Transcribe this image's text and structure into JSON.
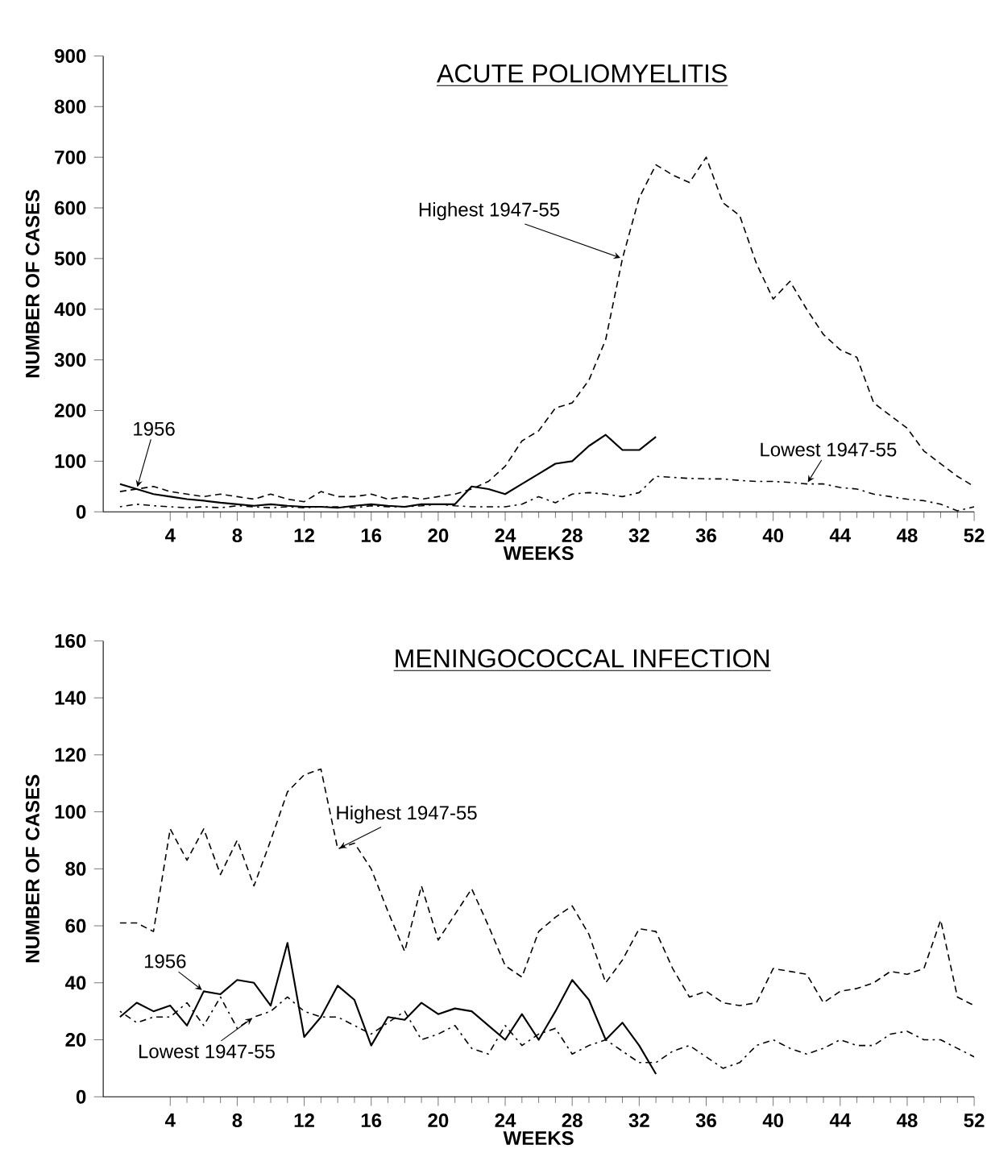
{
  "chart_data": [
    {
      "type": "line",
      "title": "ACUTE POLIOMYELITIS",
      "xlabel": "WEEKS",
      "ylabel": "NUMBER OF CASES",
      "x": [
        1,
        2,
        3,
        4,
        5,
        6,
        7,
        8,
        9,
        10,
        11,
        12,
        13,
        14,
        15,
        16,
        17,
        18,
        19,
        20,
        21,
        22,
        23,
        24,
        25,
        26,
        27,
        28,
        29,
        30,
        31,
        32,
        33,
        34,
        35,
        36,
        37,
        38,
        39,
        40,
        41,
        42,
        43,
        44,
        45,
        46,
        47,
        48,
        49,
        50,
        51,
        52
      ],
      "xlim": [
        0,
        52
      ],
      "xticks": [
        4,
        8,
        12,
        16,
        20,
        24,
        28,
        32,
        36,
        40,
        44,
        48,
        52
      ],
      "ylim": [
        0,
        900
      ],
      "yticks": [
        0,
        100,
        200,
        300,
        400,
        500,
        600,
        700,
        800,
        900
      ],
      "series": [
        {
          "color": "#000000",
          "line_style": "solid",
          "x": [
            1,
            2,
            3,
            4,
            5,
            6,
            7,
            8,
            9,
            10,
            11,
            12,
            13,
            14,
            15,
            16,
            17,
            18,
            19,
            20,
            21,
            22,
            23,
            24,
            25,
            26,
            27,
            28,
            29,
            30,
            31,
            32,
            33
          ],
          "values": [
            55,
            45,
            35,
            30,
            25,
            22,
            18,
            15,
            12,
            15,
            12,
            10,
            10,
            8,
            12,
            15,
            12,
            10,
            15,
            15,
            15,
            50,
            45,
            35,
            55,
            75,
            95,
            100,
            130,
            152,
            122,
            122,
            148
          ]
        },
        {
          "color": "#000000",
          "line_style": "dashed",
          "values": [
            40,
            45,
            50,
            40,
            35,
            30,
            35,
            30,
            25,
            35,
            25,
            20,
            40,
            30,
            30,
            35,
            25,
            30,
            25,
            30,
            35,
            45,
            60,
            90,
            140,
            160,
            205,
            215,
            260,
            340,
            500,
            620,
            685,
            665,
            650,
            700,
            610,
            585,
            490,
            420,
            455,
            400,
            350,
            320,
            305,
            215,
            190,
            165,
            120,
            95,
            70,
            50
          ]
        },
        {
          "color": "#000000",
          "line_style": "dotted",
          "values": [
            10,
            15,
            12,
            10,
            8,
            10,
            8,
            12,
            10,
            8,
            10,
            8,
            10,
            10,
            8,
            12,
            10,
            10,
            12,
            15,
            12,
            10,
            10,
            10,
            15,
            30,
            18,
            35,
            38,
            35,
            30,
            38,
            70,
            68,
            66,
            65,
            65,
            62,
            60,
            60,
            58,
            55,
            55,
            48,
            45,
            35,
            30,
            25,
            22,
            15,
            2,
            10
          ]
        }
      ],
      "annotations": [
        {
          "text": "1956",
          "x": 2,
          "y": 45
        },
        {
          "text": "Highest 1947-55",
          "x": 31,
          "y": 500
        },
        {
          "text": "Lowest 1947-55",
          "x": 42,
          "y": 55
        }
      ]
    },
    {
      "type": "line",
      "title": "MENINGOCOCCAL INFECTION",
      "xlabel": "WEEKS",
      "ylabel": "NUMBER OF CASES",
      "x": [
        1,
        2,
        3,
        4,
        5,
        6,
        7,
        8,
        9,
        10,
        11,
        12,
        13,
        14,
        15,
        16,
        17,
        18,
        19,
        20,
        21,
        22,
        23,
        24,
        25,
        26,
        27,
        28,
        29,
        30,
        31,
        32,
        33,
        34,
        35,
        36,
        37,
        38,
        39,
        40,
        41,
        42,
        43,
        44,
        45,
        46,
        47,
        48,
        49,
        50,
        51,
        52
      ],
      "xlim": [
        0,
        52
      ],
      "xticks": [
        4,
        8,
        12,
        16,
        20,
        24,
        28,
        32,
        36,
        40,
        44,
        48,
        52
      ],
      "ylim": [
        0,
        160
      ],
      "yticks": [
        0,
        20,
        40,
        60,
        80,
        100,
        120,
        140,
        160
      ],
      "series": [
        {
          "color": "#000000",
          "line_style": "solid",
          "x": [
            1,
            2,
            3,
            4,
            5,
            6,
            7,
            8,
            9,
            10,
            11,
            12,
            13,
            14,
            15,
            16,
            17,
            18,
            19,
            20,
            21,
            22,
            23,
            24,
            25,
            26,
            27,
            28,
            29,
            30,
            31,
            32,
            33
          ],
          "values": [
            28,
            33,
            30,
            32,
            25,
            37,
            36,
            41,
            40,
            32,
            54,
            21,
            28,
            39,
            34,
            18,
            28,
            27,
            33,
            29,
            31,
            30,
            25,
            20,
            29,
            20,
            30,
            41,
            34,
            20,
            26,
            18,
            8
          ]
        },
        {
          "color": "#000000",
          "line_style": "dashed",
          "values": [
            61,
            61,
            58,
            94,
            83,
            94,
            78,
            90,
            74,
            90,
            107,
            113,
            115,
            87,
            89,
            80,
            65,
            51,
            74,
            55,
            64,
            73,
            60,
            46,
            42,
            58,
            63,
            67,
            57,
            40,
            48,
            59,
            58,
            45,
            35,
            37,
            33,
            32,
            33,
            45,
            44,
            43,
            33,
            37,
            38,
            40,
            44,
            43,
            45,
            62,
            35,
            32
          ]
        },
        {
          "color": "#000000",
          "line_style": "dotted",
          "values": [
            30,
            26,
            28,
            28,
            33,
            25,
            35,
            24,
            28,
            30,
            35,
            30,
            28,
            28,
            25,
            22,
            26,
            30,
            20,
            22,
            25,
            17,
            15,
            25,
            18,
            22,
            24,
            15,
            18,
            20,
            16,
            12,
            12,
            16,
            18,
            14,
            10,
            12,
            18,
            20,
            17,
            15,
            17,
            20,
            18,
            18,
            22,
            23,
            20,
            20,
            17,
            14
          ]
        }
      ],
      "annotations": [
        {
          "text": "1956",
          "x": 6,
          "y": 37
        },
        {
          "text": "Highest 1947-55",
          "x": 14,
          "y": 87
        },
        {
          "text": "Lowest 1947-55",
          "x": 9,
          "y": 28
        }
      ]
    }
  ]
}
